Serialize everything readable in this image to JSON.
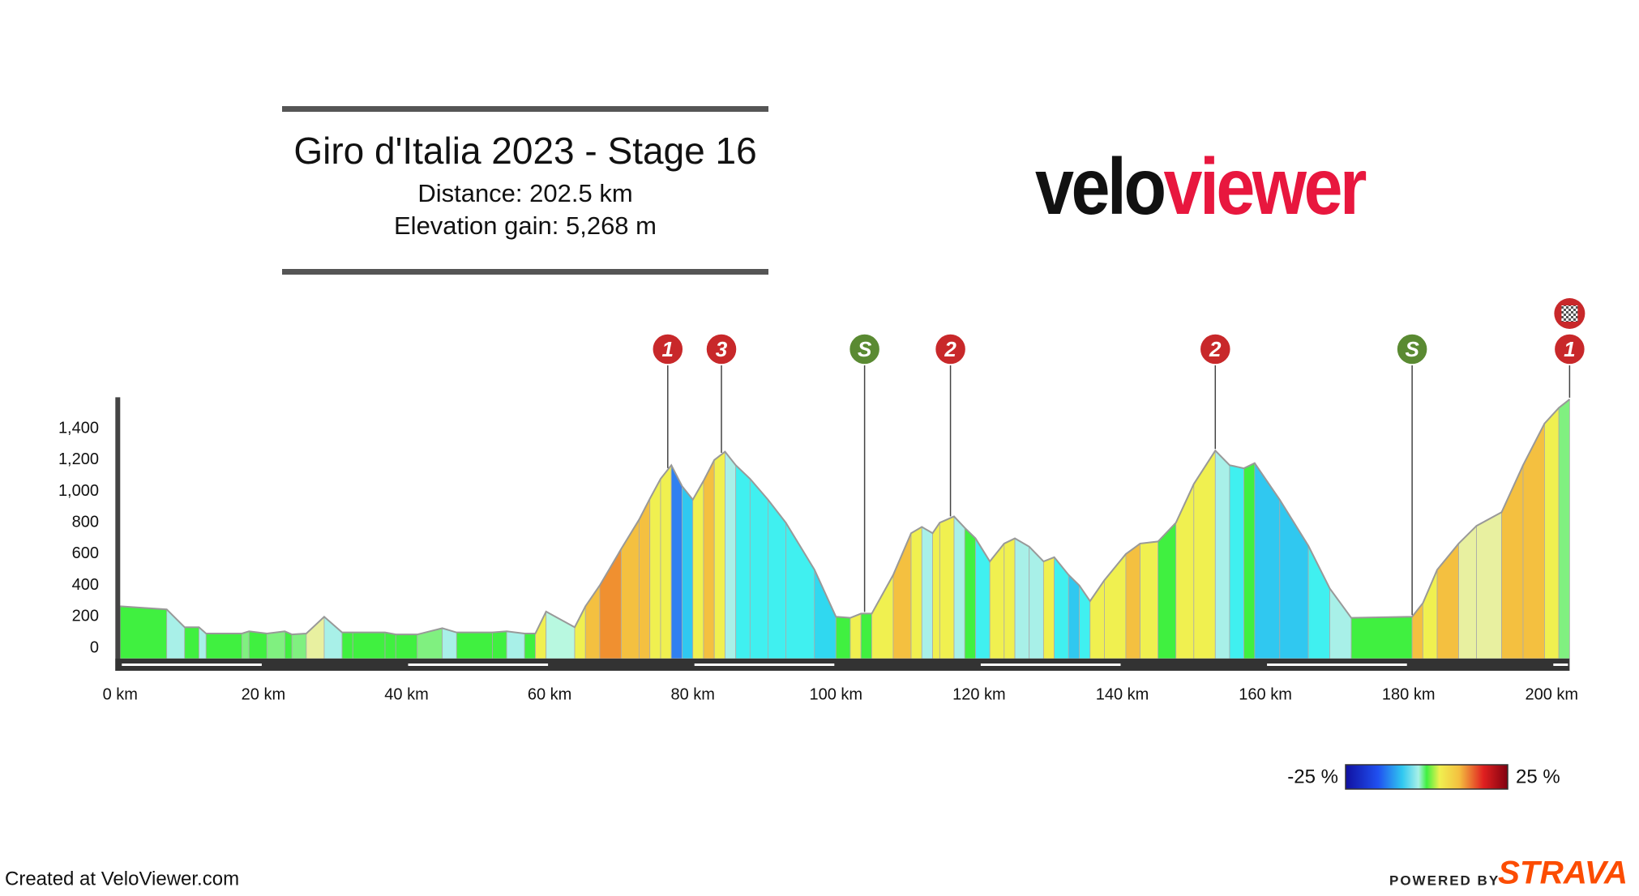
{
  "chart_data": {
    "type": "elevation-profile",
    "title": "Giro d'Italia 2023 - Stage 16",
    "subtitle": [
      "Distance: 202.5 km",
      "Elevation gain: 5,268 m"
    ],
    "brand": {
      "part1": "velo",
      "part2": "viewer",
      "color1": "#111111",
      "color2": "#e8173e"
    },
    "footer": "Created at VeloViewer.com",
    "powered_by": "POWERED BY",
    "strava": "STRAVA",
    "legend": {
      "min_label": "-25 %",
      "max_label": "25 %"
    },
    "x": [
      0,
      6.5,
      9,
      11,
      12,
      17,
      18,
      20.5,
      23,
      24,
      26,
      28.5,
      31,
      32.5,
      37,
      38.5,
      41.5,
      45,
      47,
      52,
      54,
      56.5,
      58,
      59.5,
      63.5,
      65,
      67,
      70,
      72.5,
      74,
      75.5,
      77,
      78.5,
      80,
      81.5,
      83,
      84.5,
      86,
      88,
      90.5,
      93,
      97,
      100,
      102,
      103.5,
      105,
      108,
      110.5,
      112,
      113.5,
      114.5,
      116.5,
      118,
      119.5,
      121.5,
      123.5,
      125,
      127,
      129,
      130.5,
      132.5,
      134,
      135.5,
      137.5,
      140.5,
      142.5,
      145,
      147.5,
      150,
      153,
      155,
      157,
      158.5,
      162,
      166,
      169,
      172,
      180.5,
      182,
      184,
      187,
      189.5,
      193,
      196,
      199,
      201,
      202.5
    ],
    "values": [
      267,
      247,
      133,
      133,
      93,
      93,
      107,
      93,
      107,
      87,
      93,
      200,
      100,
      100,
      100,
      87,
      87,
      127,
      100,
      100,
      107,
      93,
      93,
      233,
      133,
      267,
      400,
      633,
      820,
      953,
      1080,
      1167,
      1033,
      947,
      1067,
      1200,
      1253,
      1167,
      1080,
      947,
      800,
      500,
      200,
      193,
      220,
      220,
      467,
      733,
      773,
      733,
      800,
      840,
      767,
      700,
      553,
      667,
      700,
      647,
      553,
      580,
      467,
      400,
      300,
      433,
      600,
      667,
      680,
      800,
      1047,
      1260,
      1167,
      1147,
      1180,
      947,
      653,
      380,
      193,
      200,
      287,
      500,
      667,
      780,
      867,
      1167,
      1433,
      1533,
      1587
    ],
    "segment_colors": [
      "#40f040",
      "#a8f0e8",
      "#40f040",
      "#a8f0e8",
      "#40f040",
      "#80f080",
      "#40f040",
      "#80f080",
      "#40f040",
      "#80f080",
      "#e8f0a0",
      "#a8f0e8",
      "#40f040",
      "#40f040",
      "#40f040",
      "#40f040",
      "#80f080",
      "#a8f0e8",
      "#40f040",
      "#40f040",
      "#a8f0e8",
      "#40f040",
      "#f0f050",
      "#b8f8e0",
      "#f0f050",
      "#f4c040",
      "#f09030",
      "#f4c040",
      "#f4c040",
      "#f0f050",
      "#f0f050",
      "#3080f0",
      "#30c8f0",
      "#f0f050",
      "#f4c040",
      "#f0f050",
      "#a8f0e8",
      "#40f0f0",
      "#40f0f0",
      "#40f0f0",
      "#40f0f0",
      "#30d8f0",
      "#40f040",
      "#f0f050",
      "#40f040",
      "#f0f050",
      "#f4c040",
      "#f0f050",
      "#a8f0e8",
      "#f0f050",
      "#f0f050",
      "#a8f0e8",
      "#40f040",
      "#40f0f0",
      "#f0f050",
      "#f0f050",
      "#a8f0e8",
      "#a8f0e8",
      "#f0f050",
      "#40f0f0",
      "#30c8f0",
      "#40f0f0",
      "#f0f050",
      "#f0f050",
      "#f4c040",
      "#f0f050",
      "#40f040",
      "#f0f050",
      "#f0f050",
      "#a8f0e8",
      "#40f0f0",
      "#40f040",
      "#30c8f0",
      "#30c8f0",
      "#40f0f0",
      "#a8f0e8",
      "#40f040",
      "#f4c040",
      "#f0f050",
      "#f4c040",
      "#e8f0a0",
      "#e8f0a0",
      "#f4c040",
      "#f4c040",
      "#f0f050",
      "#80f080"
    ],
    "line_color": "#999999",
    "climbs": [
      {
        "x": 76.5,
        "label": "1",
        "color": "#c8282a"
      },
      {
        "x": 84,
        "label": "3",
        "color": "#c8282a"
      },
      {
        "x": 104,
        "label": "S",
        "color": "#5a8a32"
      },
      {
        "x": 116,
        "label": "2",
        "color": "#c8282a"
      },
      {
        "x": 153,
        "label": "2",
        "color": "#c8282a"
      },
      {
        "x": 180.5,
        "label": "S",
        "color": "#5a8a32"
      },
      {
        "x": 202.5,
        "label": "1",
        "color": "#c8282a"
      }
    ],
    "xlim": [
      0,
      202.5
    ],
    "xticks": [
      {
        "value": 0,
        "label": "0 km"
      },
      {
        "value": 20,
        "label": "20 km"
      },
      {
        "value": 40,
        "label": "40 km"
      },
      {
        "value": 60,
        "label": "60 km"
      },
      {
        "value": 80,
        "label": "80 km"
      },
      {
        "value": 100,
        "label": "100 km"
      },
      {
        "value": 120,
        "label": "120 km"
      },
      {
        "value": 140,
        "label": "140 km"
      },
      {
        "value": 160,
        "label": "160 km"
      },
      {
        "value": 180,
        "label": "180 km"
      },
      {
        "value": 200,
        "label": "200 km"
      }
    ],
    "ylim": [
      -67,
      1600
    ],
    "yticks": [
      0,
      200,
      400,
      600,
      800,
      {
        "value": 1000,
        "label": "1,000"
      },
      {
        "value": 1200,
        "label": "1,200"
      },
      {
        "value": 1400,
        "label": "1,400"
      }
    ]
  }
}
